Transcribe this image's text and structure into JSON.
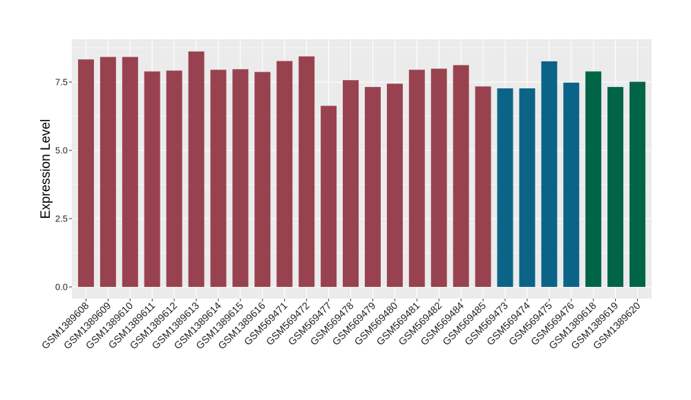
{
  "chart_data": {
    "type": "bar",
    "title": "",
    "xlabel": "",
    "ylabel": "Expression Level",
    "ylim": [
      0,
      8.8
    ],
    "yticks": [
      0.0,
      2.5,
      5.0,
      7.5
    ],
    "ytick_labels": [
      "0.0",
      "2.5",
      "5.0",
      "7.5"
    ],
    "grid": true,
    "legend": "none",
    "categories": [
      "GSM1389608",
      "GSM1389609",
      "GSM1389610",
      "GSM1389611",
      "GSM1389612",
      "GSM1389613",
      "GSM1389614",
      "GSM1389615",
      "GSM1389616",
      "GSM569471",
      "GSM569472",
      "GSM569477",
      "GSM569478",
      "GSM569479",
      "GSM569480",
      "GSM569481",
      "GSM569482",
      "GSM569484",
      "GSM569485",
      "GSM569473",
      "GSM569474",
      "GSM569475",
      "GSM569476",
      "GSM1389618",
      "GSM1389619",
      "GSM1389620"
    ],
    "values": [
      8.33,
      8.42,
      8.42,
      7.89,
      7.92,
      8.62,
      7.95,
      7.97,
      7.87,
      8.27,
      8.44,
      6.63,
      7.57,
      7.32,
      7.44,
      7.95,
      7.99,
      8.12,
      7.34,
      7.27,
      7.27,
      8.26,
      7.48,
      7.89,
      7.32,
      7.51
    ],
    "group_colors": {
      "group1": "#99424f",
      "group2": "#0b6488",
      "group3": "#006546"
    },
    "bar_groups": [
      "group1",
      "group1",
      "group1",
      "group1",
      "group1",
      "group1",
      "group1",
      "group1",
      "group1",
      "group1",
      "group1",
      "group1",
      "group1",
      "group1",
      "group1",
      "group1",
      "group1",
      "group1",
      "group1",
      "group2",
      "group2",
      "group2",
      "group2",
      "group3",
      "group3",
      "group3"
    ],
    "panel_background": "#ebebeb",
    "grid_color": "#ffffff"
  }
}
